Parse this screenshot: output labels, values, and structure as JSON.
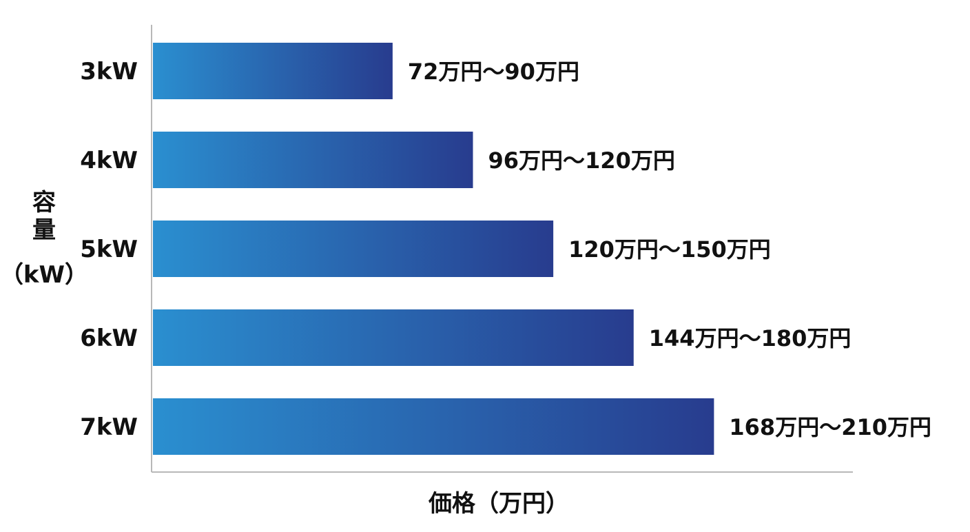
{
  "chart_data": {
    "type": "bar",
    "orientation": "horizontal",
    "title": "",
    "xlabel": "価格（万円）",
    "ylabel_lines": [
      "容",
      "量",
      "（kW）"
    ],
    "categories": [
      "3kW",
      "4kW",
      "5kW",
      "6kW",
      "7kW"
    ],
    "values": [
      90,
      120,
      150,
      180,
      210
    ],
    "value_labels": [
      "72万円〜90万円",
      "96万円〜120万円",
      "120万円〜150万円",
      "144万円〜180万円",
      "168万円〜210万円"
    ],
    "xlim": [
      0,
      245
    ],
    "grid": false,
    "legend": "none",
    "colors": {
      "bar_start": "#2a8fd0",
      "bar_end": "#283c8e",
      "axis": "#b8b8b8",
      "text": "#111111"
    }
  }
}
